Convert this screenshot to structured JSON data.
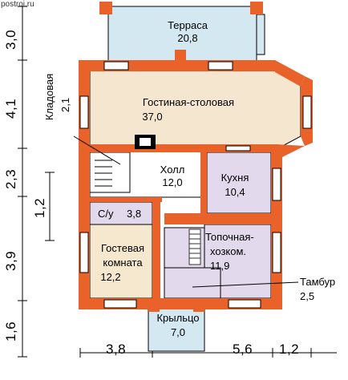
{
  "watermark": "postroi.ru",
  "colors": {
    "wall": "#e8622a",
    "wall_edge": "#c9471a",
    "terrace": "#d3e8f0",
    "kitchen": "#e2d9ec",
    "guest": "#f6e7cf",
    "living": "#f5e7cf",
    "dim_line": "#000000"
  },
  "rooms": {
    "terrace": {
      "name": "Терраса",
      "area": "20,8"
    },
    "living": {
      "name": "Гостиная-столовая",
      "area": "37,0"
    },
    "pantry": {
      "name": "Кладовая",
      "area": "2,1"
    },
    "hall": {
      "name": "Холл",
      "area": "12,0"
    },
    "kitchen": {
      "name": "Кухня",
      "area": "10,4"
    },
    "bath": {
      "name": "С/у",
      "area": "3,8"
    },
    "guest": {
      "name_line1": "Гостевая",
      "name_line2": "комната",
      "area": "12,2"
    },
    "boiler": {
      "name_line1": "Топочная-",
      "name_line2": "хозком.",
      "area": "11,9"
    },
    "vestibule": {
      "name": "Тамбур",
      "area": "2,5"
    },
    "porch": {
      "name": "Крыльцо",
      "area": "7,0"
    }
  },
  "dimensions": {
    "left": [
      "3,0",
      "4,1",
      "2,3",
      "3,9",
      "1,6"
    ],
    "left_inner": "1,2",
    "bottom": [
      "3,8",
      "5,6",
      "1,2"
    ]
  }
}
